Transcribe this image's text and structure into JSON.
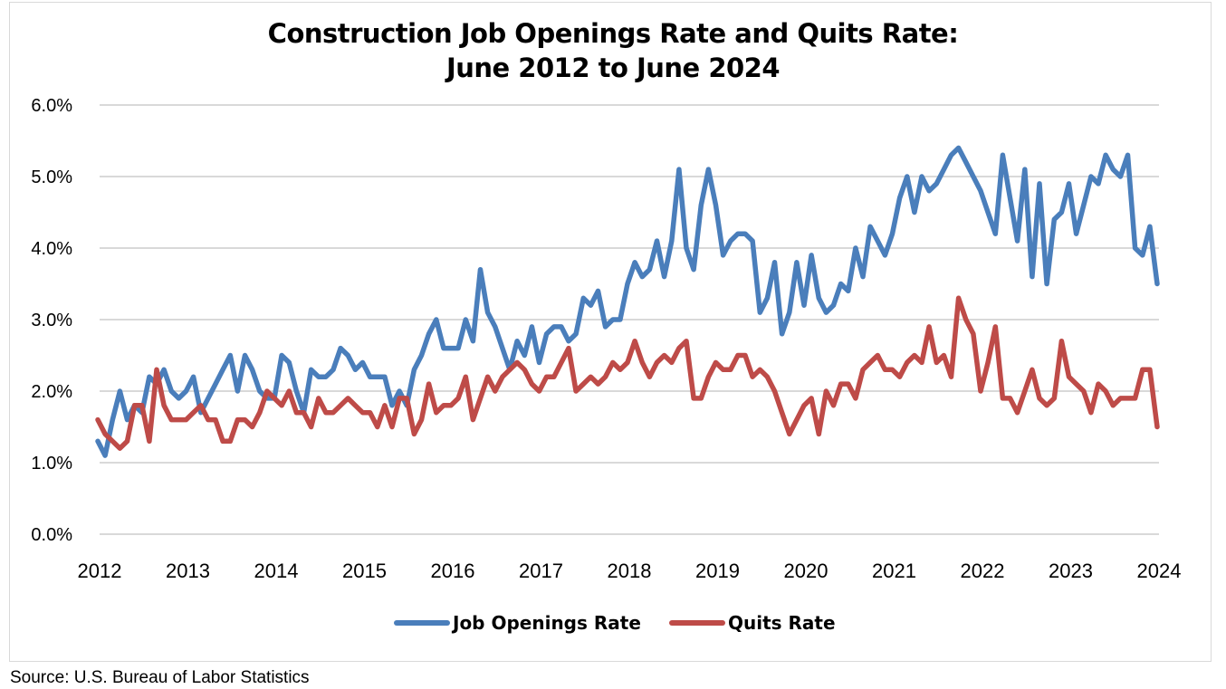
{
  "chart_data": {
    "type": "line",
    "title_line1": "Construction Job Openings Rate and Quits Rate:",
    "title_line2": "June 2012 to June 2024",
    "x_tick_labels": [
      "2012",
      "2013",
      "2014",
      "2015",
      "2016",
      "2017",
      "2018",
      "2019",
      "2020",
      "2021",
      "2022",
      "2023",
      "2024"
    ],
    "y_tick_labels": [
      "0.0%",
      "1.0%",
      "2.0%",
      "3.0%",
      "4.0%",
      "5.0%",
      "6.0%"
    ],
    "ylim": [
      0,
      6
    ],
    "y_unit": "%",
    "grid": true,
    "legend_position": "bottom",
    "series": [
      {
        "name": "Job Openings Rate",
        "color": "#4a7ebb",
        "values": [
          1.3,
          1.1,
          1.6,
          2.0,
          1.6,
          1.8,
          1.7,
          2.2,
          2.1,
          2.3,
          2.0,
          1.9,
          2.0,
          2.2,
          1.7,
          1.9,
          2.1,
          2.3,
          2.5,
          2.0,
          2.5,
          2.3,
          2.0,
          1.9,
          1.9,
          2.5,
          2.4,
          2.0,
          1.7,
          2.3,
          2.2,
          2.2,
          2.3,
          2.6,
          2.5,
          2.3,
          2.4,
          2.2,
          2.2,
          2.2,
          1.8,
          2.0,
          1.8,
          2.3,
          2.5,
          2.8,
          3.0,
          2.6,
          2.6,
          2.6,
          3.0,
          2.7,
          3.7,
          3.1,
          2.9,
          2.6,
          2.3,
          2.7,
          2.5,
          2.9,
          2.4,
          2.8,
          2.9,
          2.9,
          2.7,
          2.8,
          3.3,
          3.2,
          3.4,
          2.9,
          3.0,
          3.0,
          3.5,
          3.8,
          3.6,
          3.7,
          4.1,
          3.6,
          4.1,
          5.1,
          4.0,
          3.7,
          4.6,
          5.1,
          4.6,
          3.9,
          4.1,
          4.2,
          4.2,
          4.1,
          3.1,
          3.3,
          3.8,
          2.8,
          3.1,
          3.8,
          3.2,
          3.9,
          3.3,
          3.1,
          3.2,
          3.5,
          3.4,
          4.0,
          3.6,
          4.3,
          4.1,
          3.9,
          4.2,
          4.7,
          5.0,
          4.5,
          5.0,
          4.8,
          4.9,
          5.1,
          5.3,
          5.4,
          5.2,
          5.0,
          4.8,
          4.5,
          4.2,
          5.3,
          4.7,
          4.1,
          5.1,
          3.6,
          4.9,
          3.5,
          4.4,
          4.5,
          4.9,
          4.2,
          4.6,
          5.0,
          4.9,
          5.3,
          5.1,
          5.0,
          5.3,
          4.0,
          3.9,
          4.3,
          3.5
        ]
      },
      {
        "name": "Quits Rate",
        "color": "#be4b48",
        "values": [
          1.6,
          1.4,
          1.3,
          1.2,
          1.3,
          1.8,
          1.8,
          1.3,
          2.3,
          1.8,
          1.6,
          1.6,
          1.6,
          1.7,
          1.8,
          1.6,
          1.6,
          1.3,
          1.3,
          1.6,
          1.6,
          1.5,
          1.7,
          2.0,
          1.9,
          1.8,
          2.0,
          1.7,
          1.7,
          1.5,
          1.9,
          1.7,
          1.7,
          1.8,
          1.9,
          1.8,
          1.7,
          1.7,
          1.5,
          1.8,
          1.5,
          1.9,
          1.9,
          1.4,
          1.6,
          2.1,
          1.7,
          1.8,
          1.8,
          1.9,
          2.2,
          1.6,
          1.9,
          2.2,
          2.0,
          2.2,
          2.3,
          2.4,
          2.3,
          2.1,
          2.0,
          2.2,
          2.2,
          2.4,
          2.6,
          2.0,
          2.1,
          2.2,
          2.1,
          2.2,
          2.4,
          2.3,
          2.4,
          2.7,
          2.4,
          2.2,
          2.4,
          2.5,
          2.4,
          2.6,
          2.7,
          1.9,
          1.9,
          2.2,
          2.4,
          2.3,
          2.3,
          2.5,
          2.5,
          2.2,
          2.3,
          2.2,
          2.0,
          1.7,
          1.4,
          1.6,
          1.8,
          1.9,
          1.4,
          2.0,
          1.8,
          2.1,
          2.1,
          1.9,
          2.3,
          2.4,
          2.5,
          2.3,
          2.3,
          2.2,
          2.4,
          2.5,
          2.4,
          2.9,
          2.4,
          2.5,
          2.2,
          3.3,
          3.0,
          2.8,
          2.0,
          2.4,
          2.9,
          1.9,
          1.9,
          1.7,
          2.0,
          2.3,
          1.9,
          1.8,
          1.9,
          2.7,
          2.2,
          2.1,
          2.0,
          1.7,
          2.1,
          2.0,
          1.8,
          1.9,
          1.9,
          1.9,
          2.3,
          2.3,
          1.5
        ]
      }
    ]
  },
  "source": "Source: U.S. Bureau of Labor Statistics"
}
